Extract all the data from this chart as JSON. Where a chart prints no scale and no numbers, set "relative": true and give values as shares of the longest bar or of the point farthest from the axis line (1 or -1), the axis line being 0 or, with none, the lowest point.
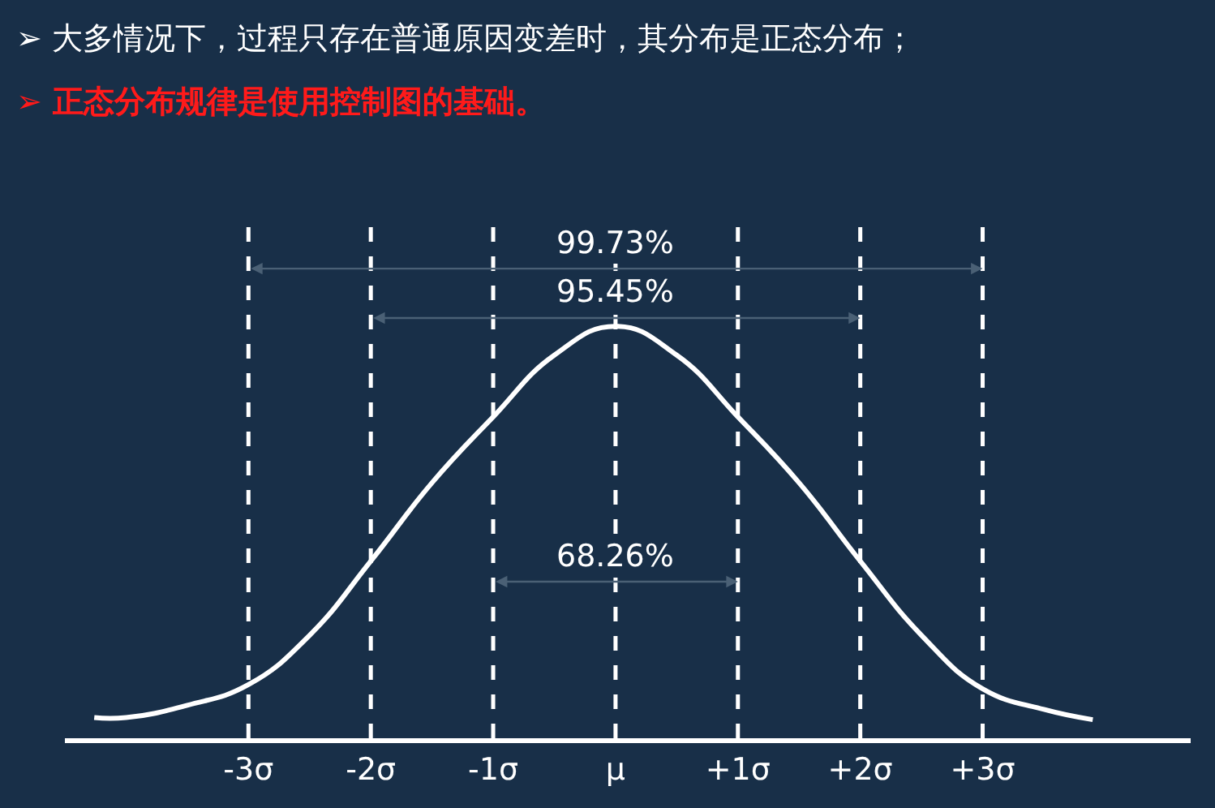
{
  "chart_data": {
    "type": "line",
    "title": "➢ 大多情况下，过程只存在普通原因变差时，其分布是正态分布；",
    "subtitle": "➢ 正态分布规律是使用控制图的基础。",
    "relative": true,
    "x": [
      -4.26,
      -4,
      -3.5,
      -3,
      -2.5,
      -2,
      -1.5,
      -1,
      -0.5,
      0,
      0.5,
      1,
      1.5,
      2,
      2.5,
      3,
      3.5,
      3.9
    ],
    "series": [
      {
        "color": "#ffffff",
        "values": [
          0.05,
          0.05,
          0.08,
          0.13,
          0.25,
          0.43,
          0.62,
          0.78,
          0.93,
          1.0,
          0.93,
          0.78,
          0.62,
          0.43,
          0.25,
          0.12,
          0.07,
          0.045
        ]
      }
    ],
    "xlim": [
      -4.5,
      4.7
    ],
    "xticks": [
      {
        "value": -3,
        "label": "-3σ"
      },
      {
        "value": -2,
        "label": "-2σ"
      },
      {
        "value": -1,
        "label": "-1σ"
      },
      {
        "value": 0,
        "label": "μ"
      },
      {
        "value": 1,
        "label": "+1σ"
      },
      {
        "value": 2,
        "label": "+2σ"
      },
      {
        "value": 3,
        "label": "+3σ"
      }
    ],
    "ref_lines": [
      {
        "axis": "x",
        "value": -3,
        "color": "#ffffff",
        "line_style": "dashed"
      },
      {
        "axis": "x",
        "value": -2,
        "color": "#ffffff",
        "line_style": "dashed"
      },
      {
        "axis": "x",
        "value": -1,
        "color": "#ffffff",
        "line_style": "dashed"
      },
      {
        "axis": "x",
        "value": 0,
        "color": "#ffffff",
        "line_style": "dashed"
      },
      {
        "axis": "x",
        "value": 1,
        "color": "#ffffff",
        "line_style": "dashed"
      },
      {
        "axis": "x",
        "value": 2,
        "color": "#ffffff",
        "line_style": "dashed"
      },
      {
        "axis": "x",
        "value": 3,
        "color": "#ffffff",
        "line_style": "dashed"
      }
    ],
    "annotations": [
      {
        "text": "99.73%",
        "y": 1.14
      },
      {
        "text": "95.45%",
        "y": 1.02
      },
      {
        "text": "68.26%",
        "y": 0.38
      }
    ],
    "grid": false,
    "marker": "none",
    "line_style": "solid"
  }
}
